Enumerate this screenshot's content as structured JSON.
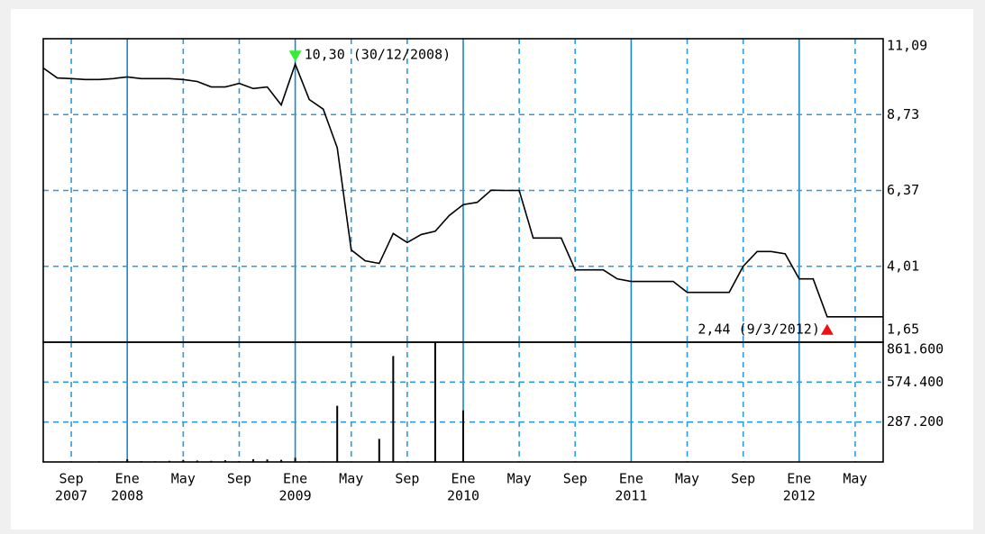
{
  "chart_data": [
    {
      "type": "line",
      "x": [
        "2007-07",
        "2007-08",
        "2007-09",
        "2007-10",
        "2007-11",
        "2007-12",
        "2008-01",
        "2008-02",
        "2008-03",
        "2008-04",
        "2008-05",
        "2008-06",
        "2008-07",
        "2008-08",
        "2008-09",
        "2008-10",
        "2008-11",
        "2008-12",
        "2009-01",
        "2009-02",
        "2009-03",
        "2009-04",
        "2009-05",
        "2009-06",
        "2009-07",
        "2009-08",
        "2009-09",
        "2009-10",
        "2009-11",
        "2009-12",
        "2010-01",
        "2010-02",
        "2010-03",
        "2010-04",
        "2010-05",
        "2010-06",
        "2010-07",
        "2010-08",
        "2010-09",
        "2010-10",
        "2010-11",
        "2010-12",
        "2011-01",
        "2011-02",
        "2011-03",
        "2011-04",
        "2011-05",
        "2011-06",
        "2011-07",
        "2011-08",
        "2011-09",
        "2011-10",
        "2011-11",
        "2011-12",
        "2012-01",
        "2012-02",
        "2012-03",
        "2012-04",
        "2012-05",
        "2012-06",
        "2012-07"
      ],
      "values": [
        10.18,
        9.87,
        9.85,
        9.82,
        9.82,
        9.85,
        9.9,
        9.85,
        9.85,
        9.85,
        9.82,
        9.76,
        9.59,
        9.59,
        9.7,
        9.54,
        9.59,
        9.03,
        10.3,
        9.2,
        8.9,
        7.7,
        4.52,
        4.18,
        4.1,
        5.03,
        4.75,
        5.0,
        5.1,
        5.59,
        5.93,
        6.0,
        6.38,
        6.37,
        6.37,
        4.89,
        4.89,
        4.89,
        3.9,
        3.9,
        3.9,
        3.62,
        3.54,
        3.54,
        3.54,
        3.54,
        3.2,
        3.2,
        3.2,
        3.2,
        4.01,
        4.47,
        4.47,
        4.4,
        3.62,
        3.62,
        2.44,
        2.44,
        2.44,
        2.44,
        2.44
      ],
      "color": "#000000",
      "xlim": [
        "2007-07",
        "2012-07"
      ],
      "xticks": [
        "2007-09",
        "2008-01",
        "2008-05",
        "2008-09",
        "2009-01",
        "2009-05",
        "2009-09",
        "2010-01",
        "2010-05",
        "2010-09",
        "2011-01",
        "2011-05",
        "2011-09",
        "2012-01",
        "2012-05"
      ],
      "ylim": [
        1.65,
        11.09
      ],
      "yticks": [
        {
          "value": 1.65,
          "label": "1,65"
        },
        {
          "value": 4.01,
          "label": "4,01"
        },
        {
          "value": 6.37,
          "label": "6,37"
        },
        {
          "value": 8.73,
          "label": "8,73"
        },
        {
          "value": 11.09,
          "label": "11,09"
        }
      ],
      "grid": true,
      "max_label": "10,30 (30/12/2008)",
      "min_label": "2,44 (9/3/2012)"
    },
    {
      "type": "bar",
      "x": [
        "2007-07",
        "2007-08",
        "2007-09",
        "2007-10",
        "2007-11",
        "2007-12",
        "2008-01",
        "2008-02",
        "2008-03",
        "2008-04",
        "2008-05",
        "2008-06",
        "2008-07",
        "2008-08",
        "2008-09",
        "2008-10",
        "2008-11",
        "2008-12",
        "2009-01",
        "2009-02",
        "2009-03",
        "2009-04",
        "2009-05",
        "2009-06",
        "2009-07",
        "2009-08",
        "2009-09",
        "2009-10",
        "2009-11",
        "2009-12",
        "2010-01",
        "2010-02",
        "2010-03",
        "2010-04",
        "2010-05",
        "2010-06",
        "2010-07",
        "2010-08",
        "2010-09",
        "2010-10",
        "2010-11",
        "2010-12",
        "2011-01",
        "2011-02",
        "2011-03",
        "2011-04",
        "2011-05",
        "2011-06",
        "2011-07",
        "2011-08",
        "2011-09",
        "2011-10",
        "2011-11",
        "2011-12",
        "2012-01",
        "2012-02",
        "2012-03",
        "2012-04",
        "2012-05",
        "2012-06",
        "2012-07"
      ],
      "values": [
        5000,
        3000,
        4000,
        3000,
        5000,
        4000,
        20000,
        6000,
        5000,
        8000,
        15000,
        10000,
        8000,
        12000,
        6000,
        20000,
        18000,
        15000,
        30000,
        5000,
        4000,
        404000,
        3000,
        2000,
        166000,
        762000,
        3000,
        2000,
        861600,
        3000,
        371000,
        2000,
        2000,
        2000,
        2000,
        2000,
        2000,
        2000,
        2000,
        2000,
        2000,
        2000,
        2000,
        2000,
        2000,
        2000,
        2000,
        2000,
        2000,
        2000,
        2000,
        2000,
        2000,
        2000,
        2000,
        2000,
        2000,
        2000,
        2000,
        2000,
        2000
      ],
      "color": "#000000",
      "xlim": [
        "2007-07",
        "2012-07"
      ],
      "xticks": [
        {
          "value": "2007-09",
          "label": "Sep",
          "year": "2007"
        },
        {
          "value": "2008-01",
          "label": "Ene",
          "year": "2008"
        },
        {
          "value": "2008-05",
          "label": "May"
        },
        {
          "value": "2008-09",
          "label": "Sep"
        },
        {
          "value": "2009-01",
          "label": "Ene",
          "year": "2009"
        },
        {
          "value": "2009-05",
          "label": "May"
        },
        {
          "value": "2009-09",
          "label": "Sep"
        },
        {
          "value": "2010-01",
          "label": "Ene",
          "year": "2010"
        },
        {
          "value": "2010-05",
          "label": "May"
        },
        {
          "value": "2010-09",
          "label": "Sep"
        },
        {
          "value": "2011-01",
          "label": "Ene",
          "year": "2011"
        },
        {
          "value": "2011-05",
          "label": "May"
        },
        {
          "value": "2011-09",
          "label": "Sep"
        },
        {
          "value": "2012-01",
          "label": "Ene",
          "year": "2012"
        },
        {
          "value": "2012-05",
          "label": "May"
        }
      ],
      "ylim": [
        0,
        861600
      ],
      "yticks": [
        {
          "value": 287200,
          "label": "287.200"
        },
        {
          "value": 574400,
          "label": "574.400"
        },
        {
          "value": 861600,
          "label": "861.600"
        }
      ],
      "grid": true
    }
  ]
}
